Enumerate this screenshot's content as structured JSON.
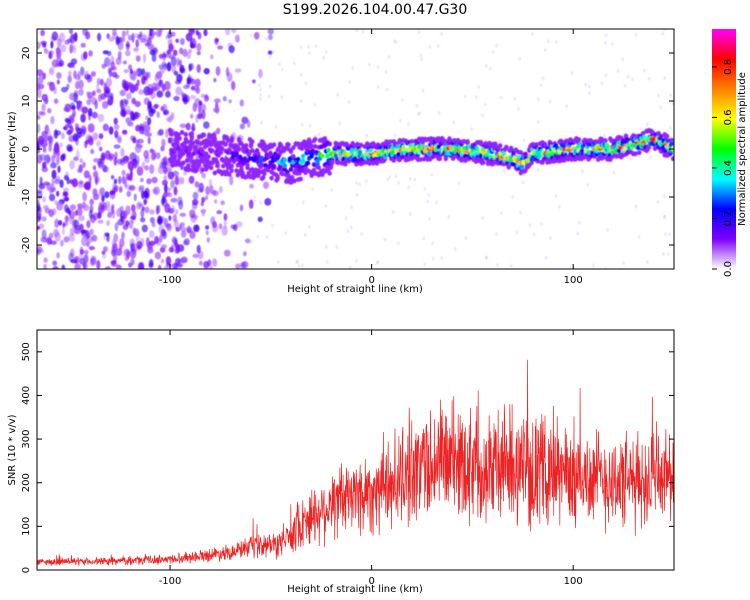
{
  "title": "S199.2026.104.00.47.G30",
  "chart_data": [
    {
      "type": "heatmap",
      "xlabel": "Height of straight line (km)",
      "ylabel": "Frequency (Hz)",
      "xlim": [
        -166,
        150
      ],
      "ylim": [
        -25,
        25
      ],
      "xticks": [
        -100,
        0,
        100
      ],
      "yticks": [
        -20,
        -10,
        0,
        10,
        20
      ],
      "grid": false,
      "colorbar": {
        "label": "Normalized spectral amplitude",
        "range": [
          0,
          0.95
        ],
        "ticks": [
          "0.0",
          "0.2",
          "0.4",
          "0.6",
          "0.8"
        ],
        "colors": [
          "#ffffff",
          "#7f00ff",
          "#0000ff",
          "#00ffff",
          "#00ff00",
          "#ffff00",
          "#ff8000",
          "#ff0000",
          "#ff00ff"
        ]
      },
      "ridge": {
        "x": [
          -100,
          -80,
          -60,
          -40,
          -20,
          0,
          20,
          40,
          60,
          70,
          75,
          80,
          100,
          120,
          140,
          150
        ],
        "frequency": [
          0,
          -1,
          -2,
          -3,
          -1,
          -1,
          0,
          0,
          -1,
          -2,
          -3,
          -1,
          0,
          0,
          2,
          0
        ]
      }
    },
    {
      "type": "line",
      "xlabel": "Height of straight line (km)",
      "ylabel": "SNR (10 * v/v)",
      "xlim": [
        -166,
        150
      ],
      "ylim": [
        0,
        550
      ],
      "xticks": [
        -100,
        0,
        100
      ],
      "yticks": [
        0,
        100,
        200,
        300,
        400,
        500
      ],
      "grid": false,
      "series": [
        {
          "color": "#ee2222",
          "envelope": {
            "x": [
              -166,
              -130,
              -100,
              -80,
              -60,
              -45,
              -35,
              -20,
              -10,
              0,
              10,
              20,
              30,
              40,
              50,
              55,
              60,
              70,
              80,
              90,
              100,
              110,
              120,
              130,
              140,
              150
            ],
            "y": [
              18,
              20,
              25,
              35,
              50,
              60,
              110,
              150,
              170,
              180,
              200,
              230,
              250,
              255,
              245,
              250,
              240,
              240,
              230,
              230,
              215,
              210,
              205,
              200,
              210,
              220
            ]
          }
        }
      ]
    }
  ]
}
